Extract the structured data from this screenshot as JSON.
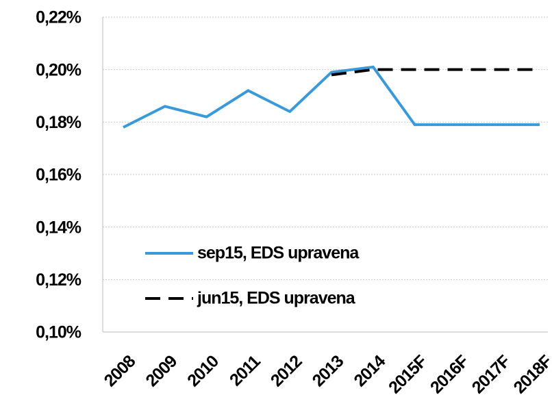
{
  "chart_data": {
    "type": "line",
    "categories": [
      "2008",
      "2009",
      "2010",
      "2011",
      "2012",
      "2013",
      "2014",
      "2015F",
      "2016F",
      "2017F",
      "2018F"
    ],
    "series": [
      {
        "name": "sep15, EDS upravena",
        "color": "#3a9ad9",
        "dash": false,
        "values": [
          0.178,
          0.186,
          0.182,
          0.192,
          0.184,
          0.199,
          0.201,
          0.179,
          0.179,
          0.179,
          0.179
        ]
      },
      {
        "name": "jun15, EDS upravena",
        "color": "#000000",
        "dash": true,
        "values": [
          null,
          null,
          null,
          null,
          null,
          0.198,
          0.2,
          0.2,
          0.2,
          0.2,
          0.2
        ]
      }
    ],
    "ylim": [
      0.1,
      0.22
    ],
    "yticks": [
      {
        "value": 0.1,
        "label": "0,10%"
      },
      {
        "value": 0.12,
        "label": "0,12%"
      },
      {
        "value": 0.14,
        "label": "0,14%"
      },
      {
        "value": 0.16,
        "label": "0,16%"
      },
      {
        "value": 0.18,
        "label": "0,18%"
      },
      {
        "value": 0.2,
        "label": "0,20%"
      },
      {
        "value": 0.22,
        "label": "0,22%"
      }
    ],
    "grid": true,
    "legend": "lower left"
  }
}
